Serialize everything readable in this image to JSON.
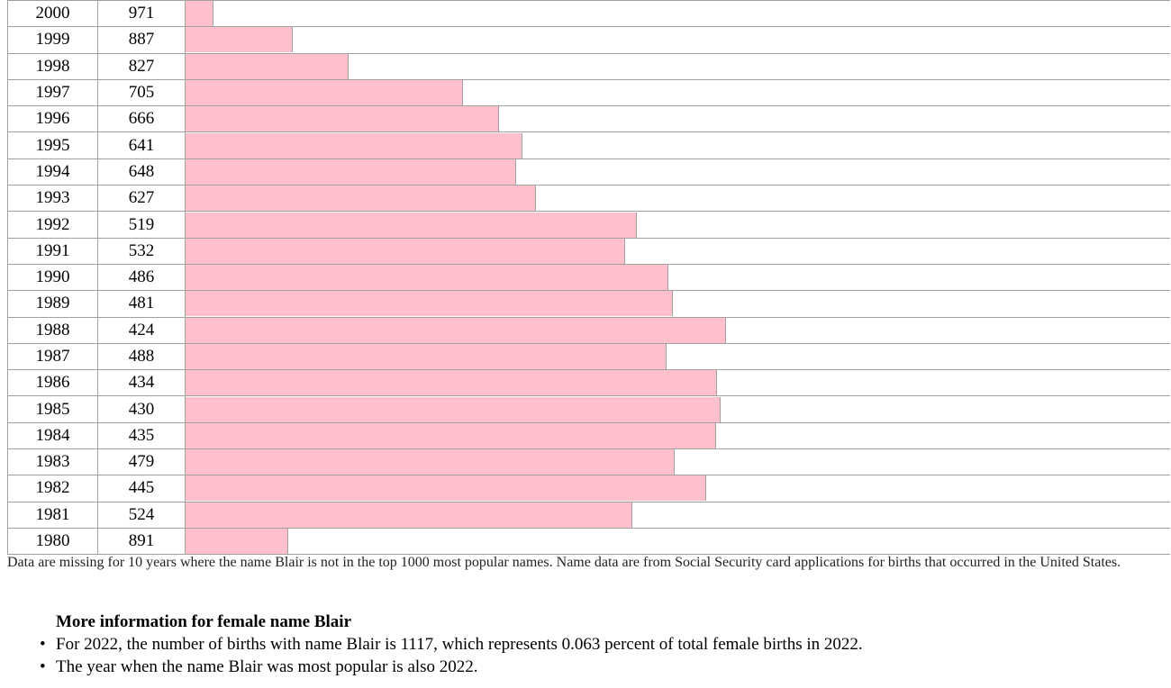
{
  "chart_data": {
    "type": "table",
    "rows": [
      {
        "year": "2000",
        "rank": 971
      },
      {
        "year": "1999",
        "rank": 887
      },
      {
        "year": "1998",
        "rank": 827
      },
      {
        "year": "1997",
        "rank": 705
      },
      {
        "year": "1996",
        "rank": 666
      },
      {
        "year": "1995",
        "rank": 641
      },
      {
        "year": "1994",
        "rank": 648
      },
      {
        "year": "1993",
        "rank": 627
      },
      {
        "year": "1992",
        "rank": 519
      },
      {
        "year": "1991",
        "rank": 532
      },
      {
        "year": "1990",
        "rank": 486
      },
      {
        "year": "1989",
        "rank": 481
      },
      {
        "year": "1988",
        "rank": 424
      },
      {
        "year": "1987",
        "rank": 488
      },
      {
        "year": "1986",
        "rank": 434
      },
      {
        "year": "1985",
        "rank": 430
      },
      {
        "year": "1984",
        "rank": 435
      },
      {
        "year": "1983",
        "rank": 479
      },
      {
        "year": "1982",
        "rank": 445
      },
      {
        "year": "1981",
        "rank": 524
      },
      {
        "year": "1980",
        "rank": 891
      }
    ],
    "bar_color": "#ffc0cb"
  },
  "note": "Data are missing for 10 years where the name Blair is not in the top 1000 most popular names. Name data are from Social Security card applications for births that occurred in the United States.",
  "more_info": {
    "title": "More information for female name Blair",
    "items": [
      "For 2022, the number of births with name Blair is 1117, which represents 0.063 percent of total female births in 2022.",
      "The year when the name Blair was most popular is also 2022."
    ]
  }
}
